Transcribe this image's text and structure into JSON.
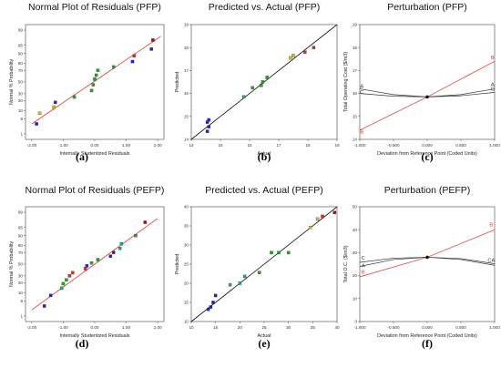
{
  "chart_data": [
    {
      "type": "scatter",
      "title": "Normal Plot of Residuals (PFP)",
      "xlabel": "Internally Studentized Residuals",
      "ylabel": "Normal % Probability",
      "caption": "(a)",
      "x_ticks": [
        "-2.00",
        "-1.00",
        "0.00",
        "1.00",
        "2.00"
      ],
      "y_ticks": [
        "1",
        "5",
        "10",
        "20",
        "30",
        "50",
        "70",
        "80",
        "90",
        "95",
        "99"
      ],
      "xlim": [
        -2.2,
        2.2
      ],
      "reference_line": [
        [
          -2.0,
          3
        ],
        [
          2.1,
          98
        ]
      ],
      "points": [
        {
          "x": -1.85,
          "y": 3,
          "color": "#2323c0"
        },
        {
          "x": -1.75,
          "y": 8,
          "color": "#e0b020"
        },
        {
          "x": -1.25,
          "y": 18,
          "color": "#2323c0"
        },
        {
          "x": -1.3,
          "y": 13,
          "color": "#e0b020"
        },
        {
          "x": -0.65,
          "y": 25,
          "color": "#2ca02c"
        },
        {
          "x": -0.1,
          "y": 35,
          "color": "#2ca02c"
        },
        {
          "x": -0.05,
          "y": 45,
          "color": "#2ca02c"
        },
        {
          "x": 0.0,
          "y": 55,
          "color": "#2ca02c"
        },
        {
          "x": 0.05,
          "y": 62,
          "color": "#2ca02c"
        },
        {
          "x": 0.1,
          "y": 70,
          "color": "#2ca02c"
        },
        {
          "x": 0.6,
          "y": 75,
          "color": "#2ca02c"
        },
        {
          "x": 1.2,
          "y": 82,
          "color": "#2323c0"
        },
        {
          "x": 1.25,
          "y": 88,
          "color": "#d43030"
        },
        {
          "x": 1.8,
          "y": 93,
          "color": "#2323c0"
        },
        {
          "x": 1.85,
          "y": 97,
          "color": "#a01010"
        }
      ]
    },
    {
      "type": "scatter",
      "title": "Predicted vs. Actual (PFP)",
      "xlabel": "Actual",
      "ylabel": "Predicted",
      "caption": "(b)",
      "xlim": [
        14,
        19
      ],
      "ylim": [
        14,
        19
      ],
      "x_ticks": [
        "14",
        "15",
        "16",
        "17",
        "18",
        "19"
      ],
      "y_ticks": [
        "14",
        "15",
        "16",
        "17",
        "18",
        "19"
      ],
      "reference_line": [
        [
          14,
          14
        ],
        [
          19,
          19
        ]
      ],
      "points": [
        {
          "x": 14.55,
          "y": 14.35,
          "color": "#2323c0"
        },
        {
          "x": 14.6,
          "y": 14.55,
          "color": "#2323c0"
        },
        {
          "x": 14.55,
          "y": 14.75,
          "color": "#2323c0"
        },
        {
          "x": 14.6,
          "y": 14.85,
          "color": "#2323c0"
        },
        {
          "x": 15.8,
          "y": 15.85,
          "color": "#20a0a0"
        },
        {
          "x": 16.1,
          "y": 16.25,
          "color": "#2ca02c"
        },
        {
          "x": 16.4,
          "y": 16.35,
          "color": "#2ca02c"
        },
        {
          "x": 16.45,
          "y": 16.5,
          "color": "#2ca02c"
        },
        {
          "x": 16.6,
          "y": 16.7,
          "color": "#2ca02c"
        },
        {
          "x": 17.4,
          "y": 17.55,
          "color": "#e0b020"
        },
        {
          "x": 17.5,
          "y": 17.65,
          "color": "#e0b020"
        },
        {
          "x": 17.9,
          "y": 17.8,
          "color": "#d43030"
        },
        {
          "x": 18.2,
          "y": 18.0,
          "color": "#d43030"
        }
      ]
    },
    {
      "type": "line",
      "title": "Perturbation (PFP)",
      "xlabel": "Deviation from Reference Point (Coded Units)",
      "ylabel": "Total Operating Cost ($/m3)",
      "caption": "(c)",
      "xlim": [
        -1,
        1
      ],
      "ylim": [
        14,
        19
      ],
      "x_ticks": [
        "-1.000",
        "-0.500",
        "0.000",
        "0.500",
        "1.000"
      ],
      "y_ticks": [
        "14",
        "15",
        "16",
        "17",
        "18",
        "19"
      ],
      "series": [
        {
          "name": "A",
          "color": "#333333",
          "points": [
            [
              -1,
              16.2
            ],
            [
              -0.5,
              15.95
            ],
            [
              0,
              15.85
            ],
            [
              0.5,
              15.95
            ],
            [
              1,
              16.2
            ]
          ]
        },
        {
          "name": "C",
          "color": "#333333",
          "points": [
            [
              -1,
              16.0
            ],
            [
              -0.5,
              15.88
            ],
            [
              0,
              15.85
            ],
            [
              0.5,
              15.9
            ],
            [
              1,
              16.05
            ]
          ]
        },
        {
          "name": "B",
          "color": "#e03030",
          "points": [
            [
              -1,
              14.4
            ],
            [
              0,
              15.85
            ],
            [
              1,
              17.4
            ]
          ]
        }
      ],
      "labels": [
        {
          "text": "A",
          "x": -0.97,
          "y": 16.25,
          "color": "#333333"
        },
        {
          "text": "C",
          "x": -0.97,
          "y": 15.98,
          "color": "#333333"
        },
        {
          "text": "B",
          "x": -0.97,
          "y": 14.25,
          "color": "#e03030"
        },
        {
          "text": "A",
          "x": 0.97,
          "y": 16.32,
          "color": "#333333"
        },
        {
          "text": "C",
          "x": 0.97,
          "y": 16.13,
          "color": "#333333"
        },
        {
          "text": "B",
          "x": 0.97,
          "y": 17.5,
          "color": "#e03030"
        }
      ]
    },
    {
      "type": "scatter",
      "title": "Normal Plot of Residuals (PEFP)",
      "xlabel": "Internally Studentized Residuals",
      "ylabel": "Normal % Probability",
      "caption": "(d)",
      "x_ticks": [
        "-2.00",
        "-1.00",
        "0.00",
        "1.00",
        "2.00"
      ],
      "y_ticks": [
        "1",
        "5",
        "10",
        "20",
        "30",
        "50",
        "70",
        "80",
        "90",
        "95",
        "99"
      ],
      "xlim": [
        -2.2,
        2.2
      ],
      "reference_line": [
        [
          -2.0,
          2
        ],
        [
          2.0,
          98
        ]
      ],
      "points": [
        {
          "x": -1.6,
          "y": 3,
          "color": "#2323c0"
        },
        {
          "x": -1.4,
          "y": 8,
          "color": "#2323c0"
        },
        {
          "x": -1.05,
          "y": 14,
          "color": "#20a0a0"
        },
        {
          "x": -1.0,
          "y": 19,
          "color": "#2ca02c"
        },
        {
          "x": -0.9,
          "y": 24,
          "color": "#2ca02c"
        },
        {
          "x": -0.8,
          "y": 30,
          "color": "#d43030"
        },
        {
          "x": -0.7,
          "y": 35,
          "color": "#d43030"
        },
        {
          "x": -0.3,
          "y": 42,
          "color": "#d43030"
        },
        {
          "x": -0.25,
          "y": 47,
          "color": "#2323c0"
        },
        {
          "x": -0.1,
          "y": 52,
          "color": "#2ca02c"
        },
        {
          "x": 0.1,
          "y": 58,
          "color": "#2ca02c"
        },
        {
          "x": 0.5,
          "y": 64,
          "color": "#2323c0"
        },
        {
          "x": 0.6,
          "y": 70,
          "color": "#2323c0"
        },
        {
          "x": 0.8,
          "y": 76,
          "color": "#20a0a0"
        },
        {
          "x": 0.85,
          "y": 82,
          "color": "#20a0a0"
        },
        {
          "x": 1.3,
          "y": 90,
          "color": "#2ca02c"
        },
        {
          "x": 1.6,
          "y": 97,
          "color": "#a01010"
        }
      ]
    },
    {
      "type": "scatter",
      "title": "Predicted vs. Actual (PEFP)",
      "xlabel": "Actual",
      "ylabel": "Predicted",
      "caption": "(e)",
      "xlim": [
        10,
        40
      ],
      "ylim": [
        10,
        40
      ],
      "x_ticks": [
        "10",
        "15",
        "20",
        "25",
        "30",
        "35",
        "40"
      ],
      "y_ticks": [
        "10",
        "15",
        "20",
        "25",
        "30",
        "35",
        "40"
      ],
      "reference_line": [
        [
          10,
          10
        ],
        [
          40,
          40
        ]
      ],
      "points": [
        {
          "x": 13.5,
          "y": 13.2,
          "color": "#2323c0"
        },
        {
          "x": 14.0,
          "y": 13.8,
          "color": "#2323c0"
        },
        {
          "x": 14.5,
          "y": 15.0,
          "color": "#2323c0"
        },
        {
          "x": 15.0,
          "y": 16.8,
          "color": "#2323c0"
        },
        {
          "x": 18.0,
          "y": 19.6,
          "color": "#20a0a0"
        },
        {
          "x": 20.0,
          "y": 20.0,
          "color": "#20a0a0"
        },
        {
          "x": 21.0,
          "y": 21.8,
          "color": "#20a0a0"
        },
        {
          "x": 24.0,
          "y": 22.8,
          "color": "#2ca02c"
        },
        {
          "x": 26.5,
          "y": 28.0,
          "color": "#2ca02c"
        },
        {
          "x": 28.0,
          "y": 28.0,
          "color": "#2ca02c"
        },
        {
          "x": 30.0,
          "y": 28.0,
          "color": "#2ca02c"
        },
        {
          "x": 34.5,
          "y": 34.6,
          "color": "#e0b020"
        },
        {
          "x": 36.0,
          "y": 36.8,
          "color": "#e0b020"
        },
        {
          "x": 37.0,
          "y": 37.5,
          "color": "#d43030"
        },
        {
          "x": 39.5,
          "y": 38.5,
          "color": "#a01010"
        }
      ]
    },
    {
      "type": "line",
      "title": "Perturbation (PEFP)",
      "xlabel": "Deviation from Reference Point (Coded Units)",
      "ylabel": "Total O.C. ($/m3)",
      "caption": "(f)",
      "xlim": [
        -1,
        1
      ],
      "ylim": [
        0,
        50
      ],
      "x_ticks": [
        "-1.000",
        "-0.500",
        "0.000",
        "0.500",
        "1.000"
      ],
      "y_ticks": [
        "0",
        "10",
        "20",
        "30",
        "40",
        "50"
      ],
      "series": [
        {
          "name": "A",
          "color": "#333333",
          "points": [
            [
              -1,
              24.0
            ],
            [
              -0.5,
              27.0
            ],
            [
              0,
              28.0
            ],
            [
              0.5,
              27.0
            ],
            [
              1,
              24.5
            ]
          ]
        },
        {
          "name": "C",
          "color": "#333333",
          "points": [
            [
              -1,
              25.8
            ],
            [
              -0.5,
              27.6
            ],
            [
              0,
              28.0
            ],
            [
              0.5,
              27.4
            ],
            [
              1,
              25.2
            ]
          ]
        },
        {
          "name": "B",
          "color": "#e03030",
          "points": [
            [
              -1,
              19.5
            ],
            [
              0,
              28.0
            ],
            [
              1,
              40.0
            ]
          ]
        }
      ],
      "labels": [
        {
          "text": "C",
          "x": -0.95,
          "y": 27.0,
          "color": "#333333"
        },
        {
          "text": "A",
          "x": -0.95,
          "y": 23.6,
          "color": "#333333"
        },
        {
          "text": "B",
          "x": -0.95,
          "y": 20.8,
          "color": "#e03030"
        },
        {
          "text": "CA",
          "x": 0.95,
          "y": 26.0,
          "color": "#333333"
        },
        {
          "text": "B",
          "x": 0.95,
          "y": 41.5,
          "color": "#e03030"
        }
      ]
    }
  ]
}
